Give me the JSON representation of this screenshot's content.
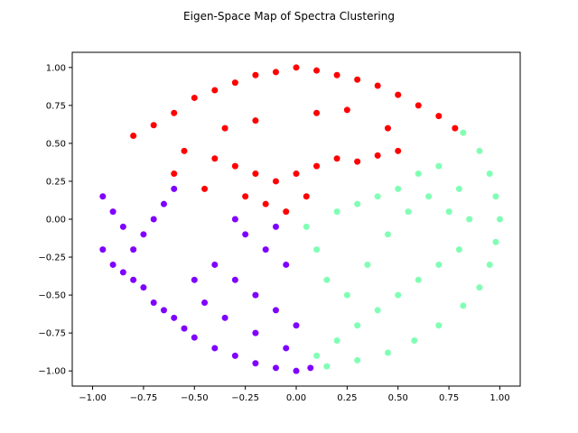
{
  "chart_data": {
    "type": "scatter",
    "title": "Eigen-Space Map of Spectra Clustering",
    "xlabel": "",
    "ylabel": "",
    "xlim": [
      -1.1,
      1.1
    ],
    "ylim": [
      -1.1,
      1.1
    ],
    "xticks": [
      -1.0,
      -0.75,
      -0.5,
      -0.25,
      0.0,
      0.25,
      0.5,
      0.75,
      1.0
    ],
    "yticks": [
      -1.0,
      -0.75,
      -0.5,
      -0.25,
      0.0,
      0.25,
      0.5,
      0.75,
      1.0
    ],
    "xtick_labels": [
      "−1.00",
      "−0.75",
      "−0.50",
      "−0.25",
      "0.00",
      "0.25",
      "0.50",
      "0.75",
      "1.00"
    ],
    "ytick_labels": [
      "−1.00",
      "−0.75",
      "−0.50",
      "−0.25",
      "0.00",
      "0.25",
      "0.50",
      "0.75",
      "1.00"
    ],
    "grid": false,
    "legend": "none",
    "series": [
      {
        "color": "#ff0000",
        "region": "upper cap of unit disk, above line from (0.00,0.00) to (0.82,0.57)",
        "points": [
          [
            -0.8,
            0.55
          ],
          [
            -0.7,
            0.62
          ],
          [
            -0.6,
            0.7
          ],
          [
            -0.5,
            0.8
          ],
          [
            -0.4,
            0.85
          ],
          [
            -0.3,
            0.9
          ],
          [
            -0.2,
            0.95
          ],
          [
            -0.1,
            0.97
          ],
          [
            0.0,
            1.0
          ],
          [
            0.1,
            0.98
          ],
          [
            0.2,
            0.95
          ],
          [
            0.3,
            0.92
          ],
          [
            0.4,
            0.88
          ],
          [
            0.5,
            0.82
          ],
          [
            0.6,
            0.75
          ],
          [
            0.7,
            0.68
          ],
          [
            0.78,
            0.6
          ],
          [
            -0.55,
            0.45
          ],
          [
            -0.4,
            0.4
          ],
          [
            -0.3,
            0.35
          ],
          [
            -0.2,
            0.3
          ],
          [
            -0.1,
            0.25
          ],
          [
            0.0,
            0.3
          ],
          [
            0.1,
            0.35
          ],
          [
            0.2,
            0.4
          ],
          [
            0.3,
            0.38
          ],
          [
            0.4,
            0.42
          ],
          [
            0.5,
            0.45
          ],
          [
            -0.15,
            0.1
          ],
          [
            -0.05,
            0.05
          ],
          [
            0.05,
            0.15
          ],
          [
            -0.35,
            0.6
          ],
          [
            -0.2,
            0.65
          ],
          [
            0.1,
            0.7
          ],
          [
            0.25,
            0.72
          ],
          [
            0.45,
            0.6
          ],
          [
            -0.6,
            0.3
          ],
          [
            -0.45,
            0.2
          ],
          [
            -0.25,
            0.15
          ]
        ]
      },
      {
        "color": "#7f00ff",
        "region": "left/lower-left of disk, x below 0.08, below red boundary",
        "points": [
          [
            -0.95,
            -0.2
          ],
          [
            -0.9,
            -0.3
          ],
          [
            -0.85,
            -0.35
          ],
          [
            -0.8,
            -0.4
          ],
          [
            -0.75,
            -0.45
          ],
          [
            -0.7,
            -0.55
          ],
          [
            -0.65,
            -0.6
          ],
          [
            -0.6,
            -0.65
          ],
          [
            -0.55,
            -0.72
          ],
          [
            -0.5,
            -0.78
          ],
          [
            -0.4,
            -0.85
          ],
          [
            -0.3,
            -0.9
          ],
          [
            -0.2,
            -0.95
          ],
          [
            -0.1,
            -0.98
          ],
          [
            0.0,
            -1.0
          ],
          [
            0.07,
            -0.98
          ],
          [
            -0.8,
            -0.2
          ],
          [
            -0.75,
            -0.1
          ],
          [
            -0.7,
            0.0
          ],
          [
            -0.65,
            0.1
          ],
          [
            -0.6,
            0.2
          ],
          [
            -0.85,
            -0.05
          ],
          [
            -0.9,
            0.05
          ],
          [
            -0.95,
            0.15
          ],
          [
            -0.4,
            -0.3
          ],
          [
            -0.3,
            -0.4
          ],
          [
            -0.2,
            -0.5
          ],
          [
            -0.1,
            -0.6
          ],
          [
            0.0,
            -0.7
          ],
          [
            -0.25,
            -0.1
          ],
          [
            -0.15,
            -0.2
          ],
          [
            -0.05,
            -0.3
          ],
          [
            -0.35,
            -0.65
          ],
          [
            -0.2,
            -0.75
          ],
          [
            -0.05,
            -0.85
          ],
          [
            -0.5,
            -0.4
          ],
          [
            -0.45,
            -0.55
          ],
          [
            -0.3,
            0.0
          ],
          [
            -0.1,
            -0.05
          ]
        ]
      },
      {
        "color": "#80ffb4",
        "region": "right/lower-right of disk, x above 0.00, below red boundary",
        "points": [
          [
            0.82,
            0.57
          ],
          [
            0.9,
            0.45
          ],
          [
            0.95,
            0.3
          ],
          [
            0.98,
            0.15
          ],
          [
            1.0,
            0.0
          ],
          [
            0.98,
            -0.15
          ],
          [
            0.95,
            -0.3
          ],
          [
            0.9,
            -0.45
          ],
          [
            0.82,
            -0.57
          ],
          [
            0.7,
            -0.7
          ],
          [
            0.58,
            -0.8
          ],
          [
            0.45,
            -0.88
          ],
          [
            0.3,
            -0.93
          ],
          [
            0.15,
            -0.97
          ],
          [
            0.1,
            -0.9
          ],
          [
            0.2,
            -0.8
          ],
          [
            0.3,
            -0.7
          ],
          [
            0.4,
            -0.6
          ],
          [
            0.5,
            -0.5
          ],
          [
            0.6,
            -0.4
          ],
          [
            0.7,
            -0.3
          ],
          [
            0.8,
            -0.2
          ],
          [
            0.85,
            0.0
          ],
          [
            0.8,
            0.2
          ],
          [
            0.7,
            0.35
          ],
          [
            0.6,
            0.3
          ],
          [
            0.5,
            0.2
          ],
          [
            0.4,
            0.15
          ],
          [
            0.3,
            0.1
          ],
          [
            0.2,
            0.05
          ],
          [
            0.05,
            -0.05
          ],
          [
            0.1,
            -0.2
          ],
          [
            0.15,
            -0.4
          ],
          [
            0.25,
            -0.5
          ],
          [
            0.35,
            -0.3
          ],
          [
            0.45,
            -0.1
          ],
          [
            0.55,
            0.05
          ],
          [
            0.65,
            0.15
          ],
          [
            0.75,
            0.05
          ]
        ]
      }
    ]
  }
}
